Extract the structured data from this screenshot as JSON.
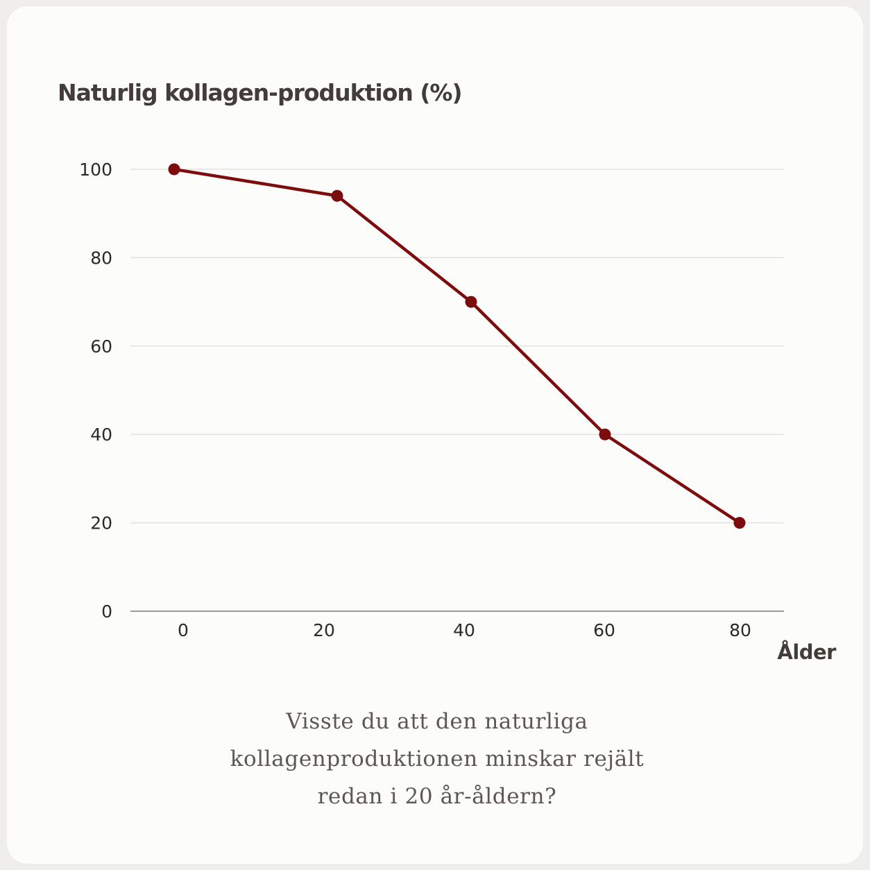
{
  "chart_data": {
    "type": "line",
    "title": "",
    "ylabel": "Naturlig kollagen-produktion (%)",
    "xlabel": "Ålder",
    "x": [
      0,
      20,
      40,
      60,
      80
    ],
    "x_ticks": [
      "0",
      "20",
      "40",
      "60",
      "80"
    ],
    "y_ticks": [
      "0",
      "20",
      "40",
      "60",
      "80",
      "100"
    ],
    "ylim": [
      0,
      100
    ],
    "series": [
      {
        "values": [
          100,
          94,
          70,
          40,
          20
        ]
      }
    ],
    "colors": {
      "line": "#7d0d0d",
      "grid": "#e2e2e2",
      "axis": "#9a9a9a"
    },
    "grid": true
  },
  "caption": "Visste du att den naturliga\nkollagenproduktionen minskar rejält\nredan i 20 år-åldern?"
}
